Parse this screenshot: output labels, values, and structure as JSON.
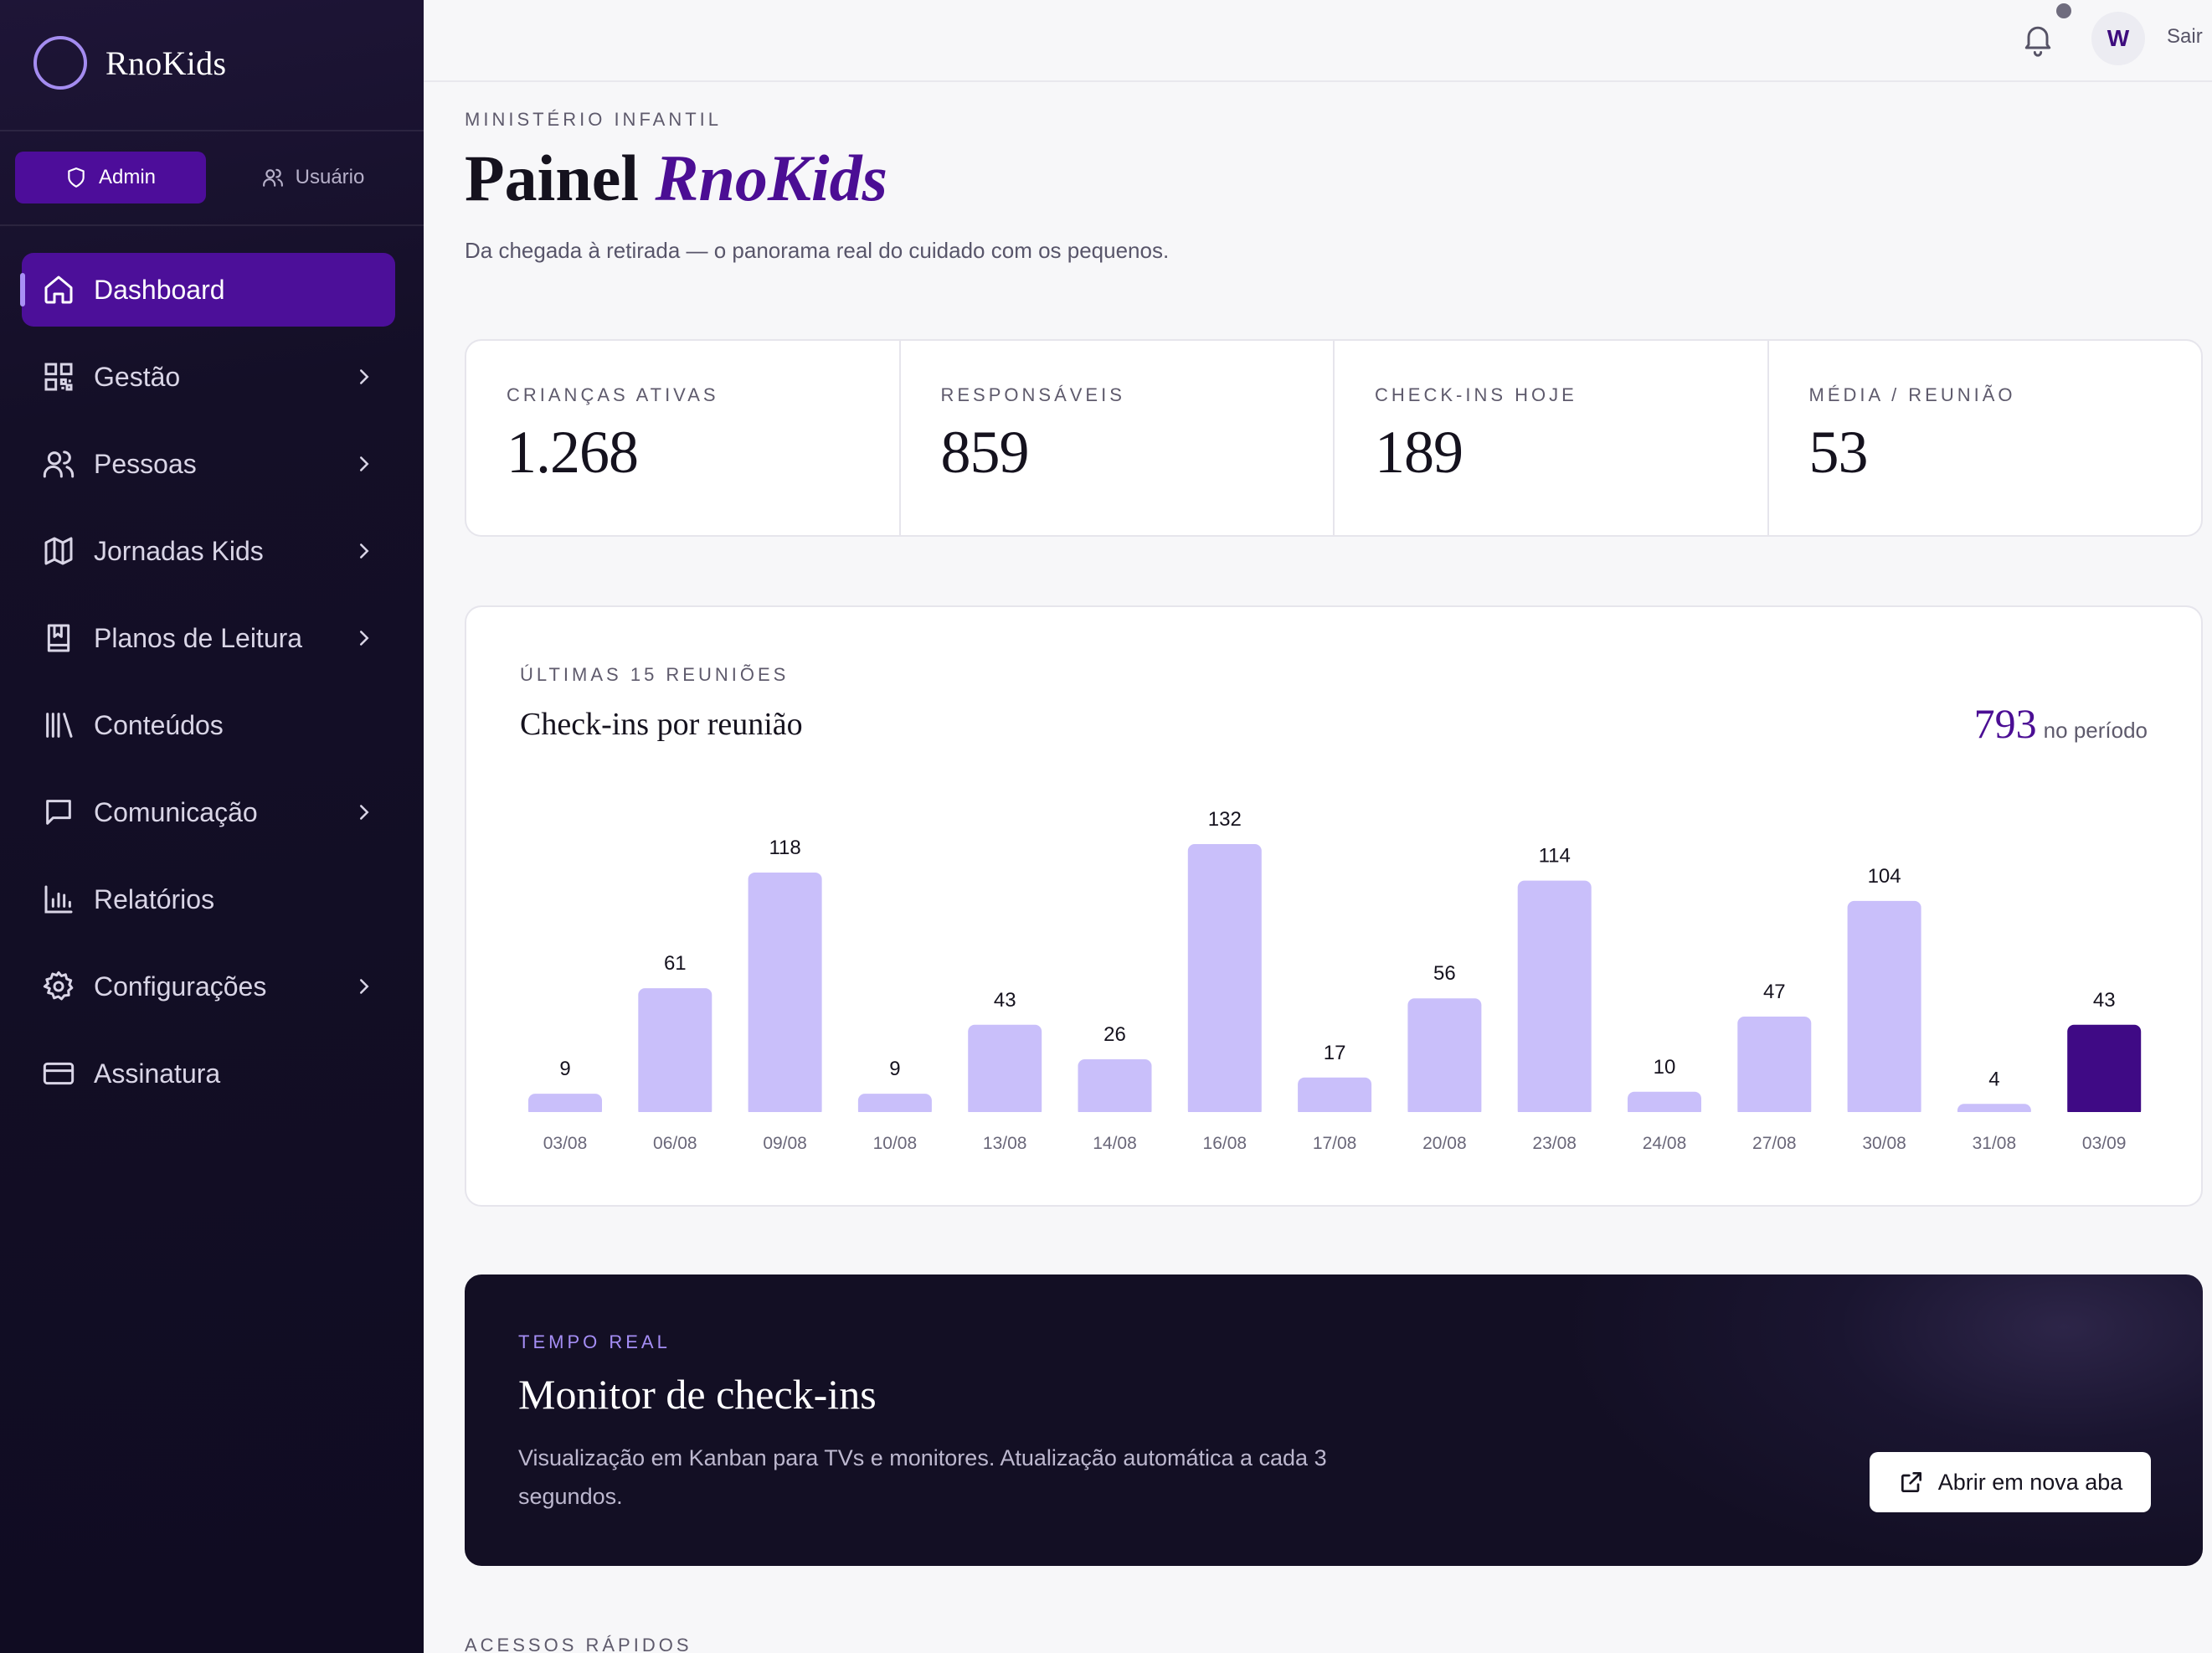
{
  "brand": {
    "name": "RnoKids"
  },
  "roles": {
    "admin": "Admin",
    "user": "Usuário"
  },
  "nav": [
    {
      "label": "Dashboard",
      "icon": "home-icon",
      "chevron": false,
      "active": true
    },
    {
      "label": "Gestão",
      "icon": "qr-code-icon",
      "chevron": true
    },
    {
      "label": "Pessoas",
      "icon": "users-icon",
      "chevron": true
    },
    {
      "label": "Jornadas Kids",
      "icon": "map-icon",
      "chevron": true
    },
    {
      "label": "Planos de Leitura",
      "icon": "book-icon",
      "chevron": true
    },
    {
      "label": "Conteúdos",
      "icon": "library-icon",
      "chevron": false
    },
    {
      "label": "Comunicação",
      "icon": "message-icon",
      "chevron": true
    },
    {
      "label": "Relatórios",
      "icon": "bar-chart-icon",
      "chevron": false
    },
    {
      "label": "Configurações",
      "icon": "gear-icon",
      "chevron": true
    },
    {
      "label": "Assinatura",
      "icon": "credit-card-icon",
      "chevron": false
    }
  ],
  "topbar": {
    "avatar_initial": "W",
    "logout": "Sair"
  },
  "page": {
    "eyebrow": "MINISTÉRIO INFANTIL",
    "title_plain": "Painel",
    "title_accent": "RnoKids",
    "subtitle": "Da chegada à retirada — o panorama real do cuidado com os pequenos."
  },
  "stats": [
    {
      "label": "CRIANÇAS ATIVAS",
      "value": "1.268"
    },
    {
      "label": "RESPONSÁVEIS",
      "value": "859"
    },
    {
      "label": "CHECK-INS HOJE",
      "value": "189"
    },
    {
      "label": "MÉDIA / REUNIÃO",
      "value": "53"
    }
  ],
  "chart_card": {
    "eyebrow": "ÚLTIMAS 15 REUNIÕES",
    "title": "Check-ins por reunião",
    "total": "793",
    "total_label": "no período"
  },
  "chart_data": {
    "type": "bar",
    "categories": [
      "03/08",
      "06/08",
      "09/08",
      "10/08",
      "13/08",
      "14/08",
      "16/08",
      "17/08",
      "20/08",
      "23/08",
      "24/08",
      "27/08",
      "30/08",
      "31/08",
      "03/09"
    ],
    "values": [
      9,
      61,
      118,
      9,
      43,
      26,
      132,
      17,
      56,
      114,
      10,
      47,
      104,
      4,
      43
    ],
    "highlight_index": 14,
    "colors": {
      "bar": "#c9bffa",
      "highlight": "#3f0a85"
    },
    "grid": false
  },
  "monitor": {
    "eyebrow": "TEMPO REAL",
    "title": "Monitor de check-ins",
    "description": "Visualização em Kanban para TVs e monitores. Atualização automática a cada 3 segundos.",
    "button": "Abrir em nova aba"
  },
  "quick_access": {
    "eyebrow": "ACESSOS RÁPIDOS"
  }
}
